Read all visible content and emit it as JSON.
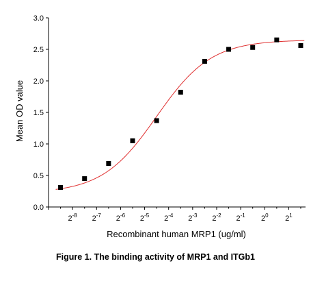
{
  "chart_data": {
    "type": "scatter",
    "title": "",
    "xlabel": "Recombinant human MRP1 (ug/ml)",
    "ylabel": "Mean OD value",
    "x_scale": "log2",
    "xlim": [
      -9.0,
      1.7
    ],
    "ylim": [
      0.0,
      3.0
    ],
    "x_ticks": [
      {
        "exp": -8,
        "base": "2",
        "sup": "-8"
      },
      {
        "exp": -7,
        "base": "2",
        "sup": "-7"
      },
      {
        "exp": -6,
        "base": "2",
        "sup": "-6"
      },
      {
        "exp": -5,
        "base": "2",
        "sup": "-5"
      },
      {
        "exp": -4,
        "base": "2",
        "sup": "-4"
      },
      {
        "exp": -3,
        "base": "2",
        "sup": "-3"
      },
      {
        "exp": -2,
        "base": "2",
        "sup": "-2"
      },
      {
        "exp": -1,
        "base": "2",
        "sup": "-1"
      },
      {
        "exp": 0,
        "base": "2",
        "sup": "0"
      },
      {
        "exp": 1,
        "base": "2",
        "sup": "1"
      }
    ],
    "y_ticks": [
      {
        "value": 0.0,
        "label": "0.0"
      },
      {
        "value": 0.5,
        "label": "0.5"
      },
      {
        "value": 1.0,
        "label": "1.0"
      },
      {
        "value": 1.5,
        "label": "1.5"
      },
      {
        "value": 2.0,
        "label": "2.0"
      },
      {
        "value": 2.5,
        "label": "2.5"
      },
      {
        "value": 3.0,
        "label": "3.0"
      }
    ],
    "points": [
      {
        "x_log2": -8.5,
        "y": 0.31
      },
      {
        "x_log2": -7.5,
        "y": 0.45
      },
      {
        "x_log2": -6.5,
        "y": 0.69
      },
      {
        "x_log2": -5.5,
        "y": 1.05
      },
      {
        "x_log2": -4.5,
        "y": 1.37
      },
      {
        "x_log2": -3.5,
        "y": 1.82
      },
      {
        "x_log2": -2.5,
        "y": 2.31
      },
      {
        "x_log2": -1.5,
        "y": 2.5
      },
      {
        "x_log2": -0.5,
        "y": 2.53
      },
      {
        "x_log2": 0.5,
        "y": 2.65
      },
      {
        "x_log2": 1.5,
        "y": 2.56
      }
    ],
    "fit_curve": {
      "model": "four-parameter logistic",
      "bottom": 0.22,
      "top": 2.65,
      "ec50_log2": -4.5,
      "hill_slope": 0.53,
      "color": "#e03030"
    },
    "grid": false,
    "legend": "none",
    "marker_color": "#000000"
  },
  "caption": "Figure 1. The binding activity of MRP1 and ITGb1"
}
